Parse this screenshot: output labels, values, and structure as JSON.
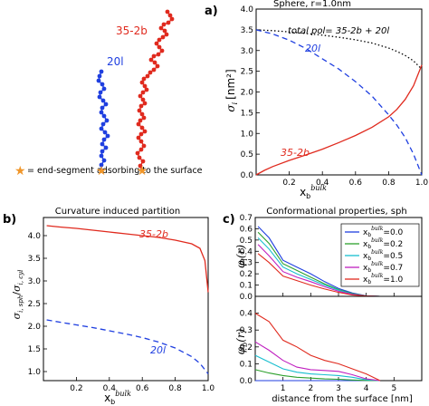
{
  "schematic": {
    "label_20l": "20l",
    "label_35_2b": "35-2b",
    "legend_text": "= end-segment adsorbing to the surface",
    "colors": {
      "blue": "#1f3fe0",
      "red": "#e02a1e",
      "star": "#f0962a"
    }
  },
  "chart_data": [
    {
      "id": "a",
      "panel_label": "a)",
      "type": "line",
      "title": "Sphere, r=1.0nm",
      "xlabel": "x",
      "xlabel_sub": "b",
      "xlabel_sup": "bulk",
      "ylabel": "σ",
      "ylabel_sub": "i",
      "ylabel_unit": "[nm²]",
      "xlim": [
        0,
        1
      ],
      "ylim": [
        0,
        4
      ],
      "xticks": [
        "0.2",
        "0.4",
        "0.6",
        "0.8",
        "1.0"
      ],
      "yticks": [
        "0.0",
        "0.5",
        "1.0",
        "1.5",
        "2.0",
        "2.5",
        "3.0",
        "3.5",
        "4.0"
      ],
      "annotations": [
        "total pol= 35-2b + 20l",
        "20l",
        "35-2b"
      ],
      "series": [
        {
          "name": "total pol= 35-2b + 20l",
          "color": "#000000",
          "dash": "dot",
          "x": [
            0,
            0.1,
            0.2,
            0.3,
            0.4,
            0.5,
            0.6,
            0.7,
            0.8,
            0.85,
            0.9,
            0.95,
            1.0
          ],
          "y": [
            3.5,
            3.48,
            3.45,
            3.41,
            3.37,
            3.32,
            3.26,
            3.18,
            3.06,
            2.98,
            2.88,
            2.75,
            2.55
          ]
        },
        {
          "name": "20l",
          "color": "#1f3fe0",
          "dash": "dash",
          "x": [
            0,
            0.1,
            0.2,
            0.3,
            0.4,
            0.5,
            0.6,
            0.7,
            0.8,
            0.85,
            0.9,
            0.95,
            1.0
          ],
          "y": [
            3.5,
            3.4,
            3.25,
            3.05,
            2.8,
            2.55,
            2.25,
            1.9,
            1.45,
            1.2,
            0.9,
            0.5,
            0.0
          ]
        },
        {
          "name": "35-2b",
          "color": "#e02a1e",
          "dash": "solid",
          "x": [
            0,
            0.05,
            0.1,
            0.2,
            0.3,
            0.4,
            0.5,
            0.6,
            0.7,
            0.8,
            0.85,
            0.9,
            0.95,
            1.0
          ],
          "y": [
            0.0,
            0.11,
            0.2,
            0.35,
            0.48,
            0.62,
            0.78,
            0.95,
            1.15,
            1.4,
            1.58,
            1.82,
            2.15,
            2.65
          ]
        }
      ]
    },
    {
      "id": "b",
      "panel_label": "b)",
      "type": "line",
      "title": "Curvature induced partition",
      "xlabel": "x",
      "xlabel_sub": "b",
      "xlabel_sup": "bulk",
      "ylabel": "σ",
      "ylabel_sub": "i, sph",
      "ylabel_den": "σ",
      "ylabel_den_sub": "i, cyl",
      "xlim": [
        0,
        1
      ],
      "ylim": [
        0.8,
        4.4
      ],
      "xticks": [
        "0.2",
        "0.4",
        "0.6",
        "0.8",
        "1.0"
      ],
      "yticks": [
        "1.0",
        "1.5",
        "2.0",
        "2.5",
        "3.0",
        "3.5",
        "4.0"
      ],
      "annotations": [
        "35-2b",
        "20l"
      ],
      "series": [
        {
          "name": "35-2b",
          "color": "#e02a1e",
          "dash": "solid",
          "x": [
            0.02,
            0.1,
            0.2,
            0.3,
            0.4,
            0.5,
            0.6,
            0.7,
            0.8,
            0.9,
            0.95,
            0.98,
            1.0
          ],
          "y": [
            4.22,
            4.19,
            4.16,
            4.12,
            4.08,
            4.04,
            4.0,
            3.96,
            3.9,
            3.82,
            3.72,
            3.45,
            2.75
          ]
        },
        {
          "name": "20l",
          "color": "#1f3fe0",
          "dash": "dash",
          "x": [
            0.02,
            0.1,
            0.2,
            0.3,
            0.4,
            0.5,
            0.6,
            0.7,
            0.8,
            0.9,
            0.95,
            1.0
          ],
          "y": [
            2.14,
            2.09,
            2.03,
            1.97,
            1.9,
            1.83,
            1.75,
            1.65,
            1.52,
            1.33,
            1.18,
            0.95
          ]
        }
      ]
    },
    {
      "id": "c_top",
      "panel_label": "c)",
      "type": "line",
      "title": "Conformational properties, sph",
      "ylabel": "φ",
      "ylabel_sub": "l",
      "ylabel_arg": "(r)",
      "xlim": [
        0,
        6
      ],
      "ylim": [
        0,
        0.7
      ],
      "yticks": [
        "0.0",
        "0.1",
        "0.2",
        "0.3",
        "0.4",
        "0.5",
        "0.6",
        "0.7"
      ],
      "legend_position": "top-right",
      "legend_prefix": "x",
      "legend_sub": "b",
      "legend_sup": "bulk",
      "series": [
        {
          "name": "=0.0",
          "color": "#1f3fe0",
          "x": [
            0.1,
            0.5,
            1,
            1.5,
            2,
            2.5,
            3,
            3.5,
            4,
            4.5
          ],
          "y": [
            0.62,
            0.52,
            0.32,
            0.26,
            0.2,
            0.13,
            0.07,
            0.03,
            0.005,
            0.0
          ]
        },
        {
          "name": "=0.2",
          "color": "#2ca02c",
          "x": [
            0.1,
            0.5,
            1,
            1.5,
            2,
            2.5,
            3,
            3.5,
            4,
            4.5
          ],
          "y": [
            0.57,
            0.47,
            0.29,
            0.23,
            0.17,
            0.11,
            0.06,
            0.025,
            0.005,
            0.0
          ]
        },
        {
          "name": "=0.5",
          "color": "#17becf",
          "x": [
            0.1,
            0.5,
            1,
            1.5,
            2,
            2.5,
            3,
            3.5,
            4,
            4.5
          ],
          "y": [
            0.52,
            0.42,
            0.26,
            0.2,
            0.15,
            0.1,
            0.055,
            0.02,
            0.005,
            0.0
          ]
        },
        {
          "name": "=0.7",
          "color": "#c020c0",
          "x": [
            0.1,
            0.5,
            1,
            1.5,
            2,
            2.5,
            3,
            3.5,
            4,
            4.5
          ],
          "y": [
            0.46,
            0.36,
            0.22,
            0.17,
            0.13,
            0.085,
            0.045,
            0.018,
            0.004,
            0.0
          ]
        },
        {
          "name": "=1.0",
          "color": "#e02a1e",
          "x": [
            0.1,
            0.5,
            1,
            1.5,
            2,
            2.5,
            3,
            3.5,
            4,
            4.5
          ],
          "y": [
            0.38,
            0.3,
            0.18,
            0.14,
            0.1,
            0.065,
            0.035,
            0.012,
            0.003,
            0.0
          ]
        }
      ]
    },
    {
      "id": "c_bottom",
      "type": "line",
      "xlabel": "distance from the surface [nm]",
      "ylabel": "φ",
      "ylabel_sub": "b",
      "ylabel_arg": "(r)",
      "xlim": [
        0,
        6
      ],
      "ylim": [
        0,
        0.5
      ],
      "xticks": [
        "1",
        "2",
        "3",
        "4",
        "5"
      ],
      "yticks": [
        "0.0",
        "0.1",
        "0.2",
        "0.3",
        "0.4"
      ],
      "series": [
        {
          "name": "=0.0",
          "color": "#1f3fe0",
          "x": [
            0,
            0.5,
            1,
            1.5,
            2,
            2.5,
            3,
            3.5,
            4,
            4.5
          ],
          "y": [
            0.0,
            0.0,
            0.0,
            0.0,
            0.0,
            0.0,
            0.0,
            0.0,
            0.0,
            0.0
          ]
        },
        {
          "name": "=0.2",
          "color": "#2ca02c",
          "x": [
            0,
            0.5,
            1,
            1.5,
            2,
            2.5,
            3,
            3.5,
            4,
            4.5
          ],
          "y": [
            0.065,
            0.045,
            0.03,
            0.02,
            0.015,
            0.01,
            0.008,
            0.004,
            0.001,
            0.0
          ]
        },
        {
          "name": "=0.5",
          "color": "#17becf",
          "x": [
            0,
            0.5,
            1,
            1.5,
            2,
            2.5,
            3,
            3.5,
            4,
            4.5
          ],
          "y": [
            0.15,
            0.11,
            0.07,
            0.05,
            0.04,
            0.035,
            0.03,
            0.02,
            0.005,
            0.0
          ]
        },
        {
          "name": "=0.7",
          "color": "#c020c0",
          "x": [
            0,
            0.5,
            1,
            1.5,
            2,
            2.5,
            3,
            3.5,
            4,
            4.5
          ],
          "y": [
            0.23,
            0.18,
            0.12,
            0.08,
            0.065,
            0.06,
            0.055,
            0.035,
            0.01,
            0.0
          ]
        },
        {
          "name": "=1.0",
          "color": "#e02a1e",
          "x": [
            0,
            0.5,
            1,
            1.5,
            2,
            2.5,
            3,
            3.5,
            4,
            4.5
          ],
          "y": [
            0.4,
            0.35,
            0.24,
            0.2,
            0.15,
            0.12,
            0.1,
            0.07,
            0.04,
            0.0
          ]
        }
      ]
    }
  ]
}
